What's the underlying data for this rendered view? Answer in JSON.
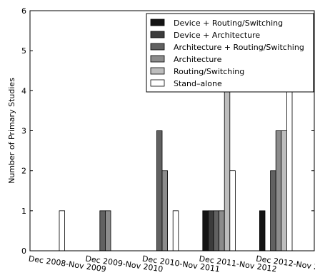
{
  "chart_data": {
    "type": "bar",
    "ylabel": "Number of Primary Studies",
    "xlabel": "",
    "ylim": [
      0,
      6
    ],
    "yticks": [
      "0",
      "1",
      "2",
      "3",
      "4",
      "5",
      "6"
    ],
    "categories": [
      "Dec 2008-Nov 2009",
      "Dec 2009-Nov 2010",
      "Dec 2010-Nov 2011",
      "Dec 2011-Nov 2012",
      "Dec 2012-Nov 2013"
    ],
    "legend_position": "top-right",
    "grid": false,
    "series": [
      {
        "name": "Device + Routing/Switching",
        "color": "#141414",
        "values": [
          0,
          0,
          0,
          1,
          1
        ]
      },
      {
        "name": "Device + Architecture",
        "color": "#3c3c3c",
        "values": [
          0,
          0,
          0,
          1,
          0
        ]
      },
      {
        "name": "Architecture + Routing/Switching",
        "color": "#616161",
        "values": [
          0,
          1,
          3,
          1,
          2
        ]
      },
      {
        "name": "Architecture",
        "color": "#8c8c8c",
        "values": [
          0,
          1,
          2,
          1,
          3
        ]
      },
      {
        "name": "Routing/Switching",
        "color": "#bdbdbd",
        "values": [
          0,
          0,
          0,
          4,
          3
        ]
      },
      {
        "name": "Stand–alone",
        "color": "#ffffff",
        "values": [
          1,
          0,
          1,
          2,
          4
        ]
      }
    ]
  }
}
